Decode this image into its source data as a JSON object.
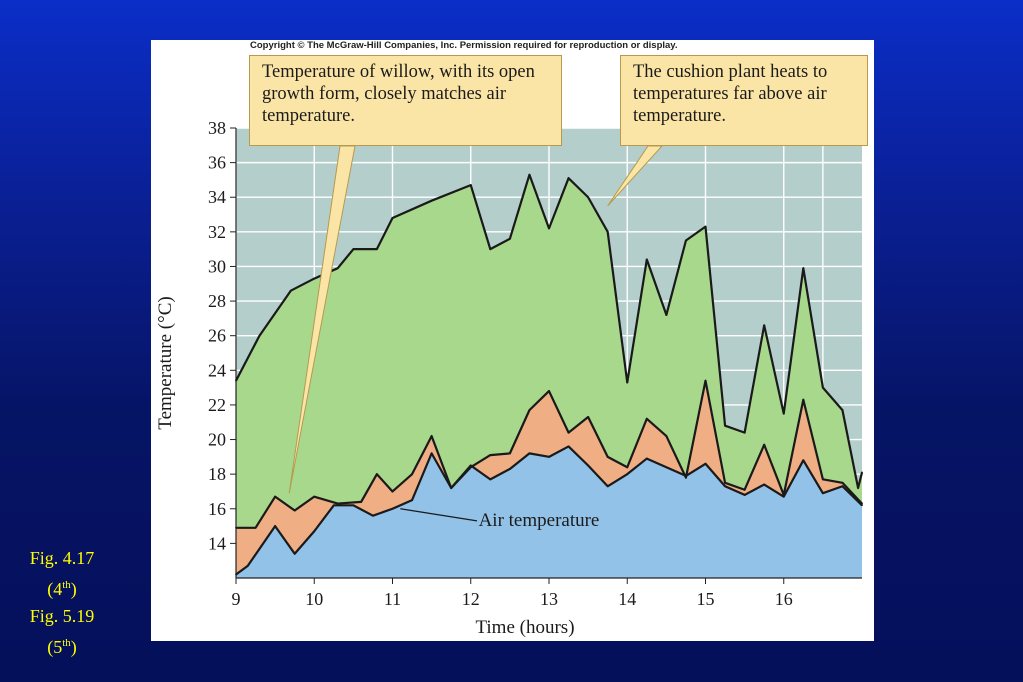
{
  "copyright": "Copyright © The McGraw-Hill Companies, Inc. Permission required for reproduction or display.",
  "callouts": {
    "willow": "Temperature of willow, with its open growth form, closely matches air temperature.",
    "cushion": "The cushion plant heats to temperatures far above air temperature."
  },
  "caption": {
    "line1": "Fig. 4.17",
    "line2_pre": "(4",
    "line2_sup": "th",
    "line2_post": ")",
    "line3": "Fig. 5.19",
    "line4_pre": "(5",
    "line4_sup": "th",
    "line4_post": ")"
  },
  "colors": {
    "background_top": "#0a2ec8",
    "background_bottom": "#05105a",
    "cushion_fill": "#a8d88c",
    "willow_fill": "#efae84",
    "air_fill": "#92c2e8",
    "plot_bg": "#b4cfcb",
    "caption_text": "#ffff00",
    "callout_bg": "#fbe5a6"
  },
  "chart_data": {
    "type": "area",
    "xlabel": "Time (hours)",
    "ylabel": "Temperature (°C)",
    "xlim": [
      9,
      17
    ],
    "ylim": [
      12,
      38
    ],
    "xticks": [
      9,
      10,
      11,
      12,
      13,
      14,
      15,
      16
    ],
    "yticks": [
      14,
      16,
      18,
      20,
      22,
      24,
      26,
      28,
      30,
      32,
      34,
      36,
      38
    ],
    "grid": true,
    "annotations": [
      "Air temperature"
    ],
    "series": [
      {
        "x": [
          9.0,
          9.3,
          9.7,
          10.0,
          10.3,
          10.5,
          10.8,
          11.0,
          11.5,
          12.0,
          12.25,
          12.5,
          12.75,
          13.0,
          13.25,
          13.5,
          13.75,
          14.0,
          14.25,
          14.5,
          14.75,
          15.0,
          15.25,
          15.5,
          15.75,
          16.0,
          16.25,
          16.5,
          16.75,
          16.95,
          17.0
        ],
        "values": [
          23.4,
          26.0,
          28.6,
          29.3,
          29.9,
          31.0,
          31.0,
          32.8,
          33.8,
          34.7,
          31.0,
          31.6,
          35.3,
          32.2,
          35.1,
          34.0,
          32.0,
          23.3,
          30.4,
          27.2,
          31.5,
          32.3,
          20.8,
          20.4,
          26.6,
          21.5,
          29.9,
          23.0,
          21.7,
          17.2,
          18.1
        ]
      },
      {
        "x": [
          9.0,
          9.25,
          9.5,
          9.75,
          10.0,
          10.3,
          10.6,
          10.8,
          11.0,
          11.25,
          11.5,
          11.75,
          12.0,
          12.25,
          12.5,
          12.75,
          13.0,
          13.25,
          13.5,
          13.75,
          14.0,
          14.25,
          14.5,
          14.75,
          15.0,
          15.25,
          15.5,
          15.75,
          16.0,
          16.25,
          16.5,
          16.75,
          17.0
        ],
        "values": [
          14.9,
          14.9,
          16.7,
          15.9,
          16.7,
          16.3,
          16.4,
          18.0,
          17.0,
          18.0,
          20.2,
          17.2,
          18.4,
          19.1,
          19.2,
          21.7,
          22.8,
          20.4,
          21.3,
          19.0,
          18.4,
          21.2,
          20.2,
          17.8,
          23.4,
          17.5,
          17.1,
          19.7,
          16.8,
          22.3,
          17.7,
          17.5,
          16.3
        ]
      },
      {
        "name": "Air temperature",
        "x": [
          9.0,
          9.15,
          9.5,
          9.75,
          10.0,
          10.25,
          10.5,
          10.75,
          11.0,
          11.25,
          11.5,
          11.75,
          12.0,
          12.25,
          12.5,
          12.75,
          13.0,
          13.25,
          13.5,
          13.75,
          14.0,
          14.25,
          14.5,
          14.75,
          15.0,
          15.25,
          15.5,
          15.75,
          16.0,
          16.25,
          16.5,
          16.75,
          17.0
        ],
        "values": [
          12.2,
          12.7,
          15.0,
          13.4,
          14.7,
          16.2,
          16.2,
          15.6,
          16.0,
          16.5,
          19.2,
          17.2,
          18.5,
          17.7,
          18.3,
          19.2,
          19.0,
          19.6,
          18.5,
          17.3,
          18.0,
          18.9,
          18.4,
          17.9,
          18.6,
          17.3,
          16.8,
          17.4,
          16.7,
          18.8,
          16.9,
          17.3,
          16.2
        ]
      }
    ]
  }
}
